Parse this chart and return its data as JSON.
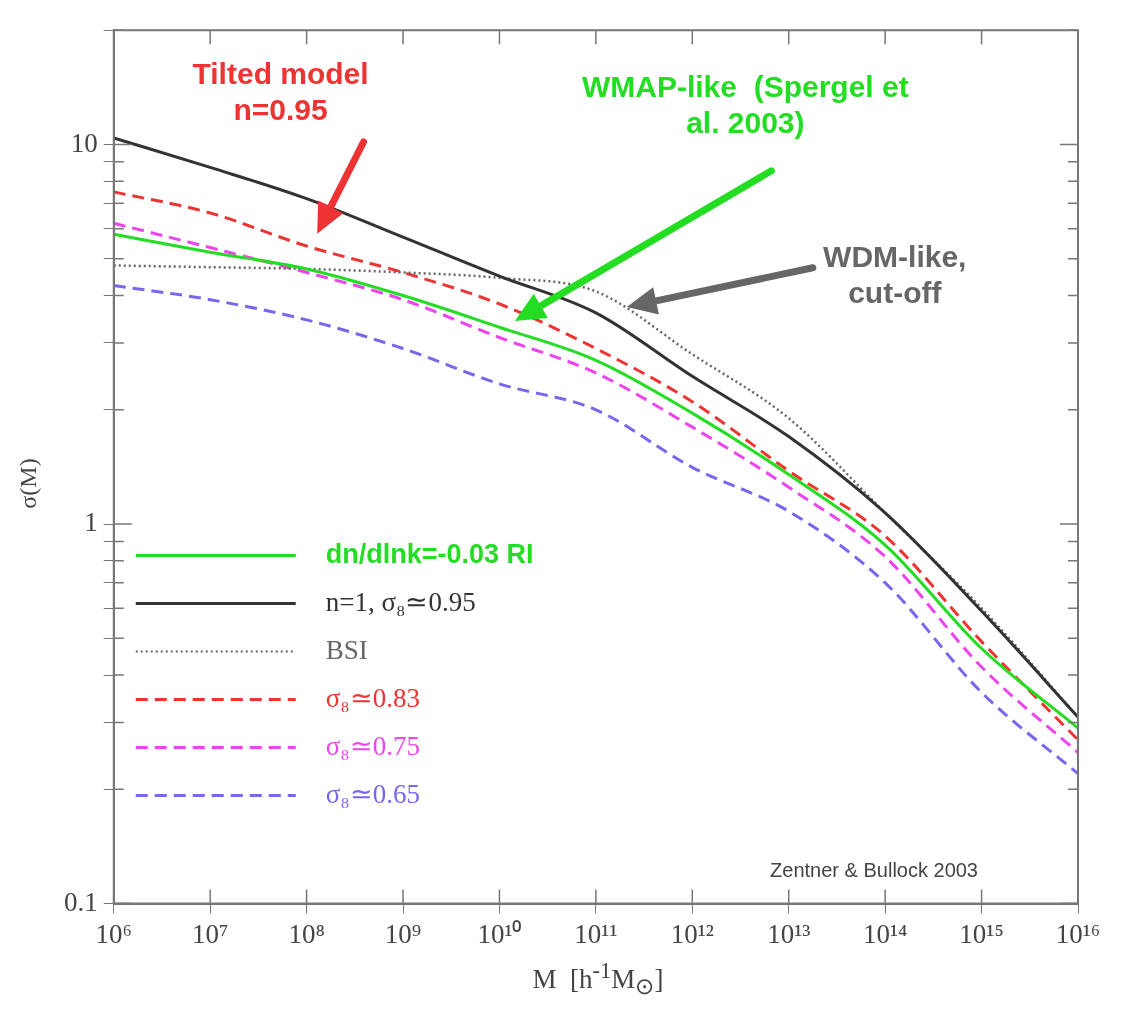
{
  "chart_data": {
    "type": "line",
    "xlabel": "M  [h$^{-1}$M$_{⊙}$]",
    "ylabel": "σ(M)",
    "log": "xy",
    "marker": "none",
    "legend": "bottom left",
    "grid": false,
    "x": [
      1000000.0,
      10000000.0,
      100000000.0,
      1000000000.0,
      10000000000.0,
      100000000000.0,
      1000000000000.0,
      10000000000000.0,
      100000000000000.0,
      1000000000000000.0,
      1e+16
    ],
    "xlim": [
      1000000.0,
      1e+16
    ],
    "xticks": [
      {
        "value": 1000000.0,
        "label": "10⁶"
      },
      {
        "value": 10000000.0,
        "label": "10⁷"
      },
      {
        "value": 100000000.0,
        "label": "10⁸"
      },
      {
        "value": 1000000000.0,
        "label": "10⁹"
      },
      {
        "value": 10000000000.0,
        "label": "10¹⁰"
      },
      {
        "value": 100000000000.0,
        "label": "10¹¹"
      },
      {
        "value": 1000000000000.0,
        "label": "10¹²"
      },
      {
        "value": 10000000000000.0,
        "label": "10¹³"
      },
      {
        "value": 100000000000000.0,
        "label": "10¹⁴"
      },
      {
        "value": 1000000000000000.0,
        "label": "10¹⁵"
      },
      {
        "value": 1e+16,
        "label": "10¹⁶"
      }
    ],
    "ylim": [
      0.1,
      20
    ],
    "yticks": [
      0.1,
      {
        "value": 0.2,
        "label": null
      },
      {
        "value": 0.3,
        "label": null
      },
      {
        "value": 0.4,
        "label": null
      },
      {
        "value": 0.5,
        "label": null
      },
      {
        "value": 0.6,
        "label": null
      },
      {
        "value": 0.7,
        "label": null
      },
      {
        "value": 0.8,
        "label": null
      },
      {
        "value": 0.9,
        "label": null
      },
      1,
      {
        "value": 2,
        "label": null
      },
      {
        "value": 3,
        "label": null
      },
      {
        "value": 4,
        "label": null
      },
      {
        "value": 5,
        "label": null
      },
      {
        "value": 6,
        "label": null
      },
      {
        "value": 7,
        "label": null
      },
      {
        "value": 8,
        "label": null
      },
      {
        "value": 9,
        "label": null
      },
      10,
      {
        "value": 20,
        "label": null
      }
    ],
    "series": [
      {
        "name": "dn/dlnk=-0.03 RI",
        "color": "#22dd22",
        "line_style": "solid",
        "values": [
          5.8,
          5.2,
          4.7,
          4.0,
          3.3,
          2.7,
          1.96,
          1.35,
          0.88,
          0.47,
          0.29
        ]
      },
      {
        "name": "n=1, σ₈≃0.95",
        "color": "#333333",
        "line_style": "solid",
        "values": [
          10.4,
          8.7,
          7.2,
          5.7,
          4.5,
          3.6,
          2.45,
          1.7,
          1.07,
          0.59,
          0.31
        ]
      },
      {
        "name": "BSI",
        "color": "#666666",
        "line_style": "dotted",
        "values": [
          4.8,
          4.75,
          4.7,
          4.6,
          4.45,
          4.1,
          2.8,
          1.9,
          1.07,
          0.6,
          0.31
        ]
      },
      {
        "name": "σ₈≃0.83",
        "color": "#ee3333",
        "line_style": "dashed",
        "values": [
          7.5,
          6.6,
          5.4,
          4.6,
          3.8,
          2.9,
          2.1,
          1.38,
          0.93,
          0.49,
          0.27
        ]
      },
      {
        "name": "σ₈≃0.75",
        "color": "#ee44ee",
        "line_style": "dashed",
        "values": [
          6.2,
          5.35,
          4.6,
          3.9,
          3.1,
          2.5,
          1.8,
          1.25,
          0.82,
          0.42,
          0.25
        ]
      },
      {
        "name": "σ₈≃0.65",
        "color": "#7766ee",
        "line_style": "dashed",
        "values": [
          4.25,
          3.9,
          3.45,
          2.9,
          2.34,
          2.0,
          1.41,
          1.08,
          0.7,
          0.36,
          0.22
        ]
      }
    ],
    "annotations": [
      "Tilted model n=0.95",
      "WMAP-like  (Spergel et al. 2003)",
      "WDM-like, cut-off",
      "Zentner & Bullock 2003"
    ]
  }
}
